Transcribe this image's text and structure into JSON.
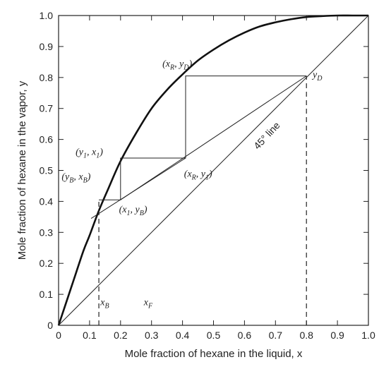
{
  "chart_data": {
    "type": "line",
    "xlabel": "Mole fraction of hexane in the liquid, x",
    "ylabel": "Mole fraction of hexane in the vapor, y",
    "xlim": [
      0,
      1
    ],
    "ylim": [
      0,
      1
    ],
    "x_ticks": [
      0,
      0.1,
      0.2,
      0.3,
      0.4,
      0.5,
      0.6,
      0.7,
      0.8,
      0.9,
      1.0
    ],
    "x_tick_labels": [
      "0",
      "0.1",
      "0.2",
      "0.3",
      "0.4",
      "0.5",
      "0.6",
      "0.7",
      "0.8",
      "0.9",
      "1.0"
    ],
    "y_ticks": [
      0,
      0.1,
      0.2,
      0.3,
      0.4,
      0.5,
      0.6,
      0.7,
      0.8,
      0.9,
      1.0
    ],
    "y_tick_labels": [
      "0",
      "0.1",
      "0.2",
      "0.3",
      "0.4",
      "0.5",
      "0.6",
      "0.7",
      "0.8",
      "0.9",
      "1.0"
    ],
    "grid": false,
    "series": [
      {
        "key": "equilibrium",
        "x": [
          0,
          0.02,
          0.05,
          0.08,
          0.1,
          0.13,
          0.16,
          0.2,
          0.25,
          0.3,
          0.35,
          0.4,
          0.45,
          0.5,
          0.55,
          0.6,
          0.65,
          0.7,
          0.75,
          0.8,
          0.85,
          0.9,
          0.95,
          1.0
        ],
        "y": [
          0,
          0.06,
          0.15,
          0.24,
          0.29,
          0.37,
          0.44,
          0.53,
          0.62,
          0.7,
          0.76,
          0.81,
          0.855,
          0.89,
          0.92,
          0.945,
          0.965,
          0.978,
          0.988,
          0.995,
          0.998,
          1.0,
          1.0,
          1.0
        ]
      },
      {
        "key": "diagonal",
        "x": [
          0,
          1
        ],
        "y": [
          0,
          1
        ]
      },
      {
        "key": "rectifying_line",
        "x": [
          0.2,
          0.8
        ],
        "y": [
          0.405,
          0.805
        ]
      },
      {
        "key": "stripping_line",
        "x": [
          0.105,
          0.41
        ],
        "y": [
          0.345,
          0.54
        ]
      },
      {
        "key": "stages",
        "x": [
          0.8,
          0.41,
          0.41,
          0.2,
          0.2,
          0.13,
          0.13
        ],
        "y": [
          0.805,
          0.805,
          0.54,
          0.54,
          0.405,
          0.405,
          0.405
        ]
      },
      {
        "key": "xd_drop",
        "x": [
          0.8,
          0.8
        ],
        "y": [
          0,
          0.805
        ]
      },
      {
        "key": "xb_drop",
        "x": [
          0.13,
          0.13
        ],
        "y": [
          0,
          0.405
        ]
      }
    ],
    "annotations": [
      {
        "text": "(x_R, y_D)",
        "x": 0.335,
        "y": 0.835,
        "main": "(x",
        "sub": "R",
        "rest": ", y",
        "sub2": "D",
        "tail": ")"
      },
      {
        "text": "y_D",
        "x": 0.82,
        "y": 0.8,
        "main": "y",
        "sub": "D",
        "rest": "",
        "sub2": "",
        "tail": ""
      },
      {
        "text": "(y_1, x_1)",
        "x": 0.055,
        "y": 0.55,
        "main": "(y",
        "sub": "1",
        "rest": ", x",
        "sub2": "1",
        "tail": ")"
      },
      {
        "text": "(y_B, x_B)",
        "x": 0.01,
        "y": 0.47,
        "main": "(y",
        "sub": "B",
        "rest": ", x",
        "sub2": "B",
        "tail": ")"
      },
      {
        "text": "(x_R, y_1)",
        "x": 0.405,
        "y": 0.48,
        "main": "(x",
        "sub": "R",
        "rest": ", y",
        "sub2": "1",
        "tail": ")"
      },
      {
        "text": "(x_1, y_B)",
        "x": 0.195,
        "y": 0.365,
        "main": "(x",
        "sub": "1",
        "rest": ", y",
        "sub2": "B",
        "tail": ")"
      },
      {
        "text": "x_B",
        "x": 0.135,
        "y": 0.065,
        "main": "x",
        "sub": "B",
        "rest": "",
        "sub2": "",
        "tail": ""
      },
      {
        "text": "x_F",
        "x": 0.275,
        "y": 0.065,
        "main": "x",
        "sub": "F",
        "rest": "",
        "sub2": "",
        "tail": ""
      }
    ],
    "line_label": {
      "text": "45° line",
      "x": 0.68,
      "y": 0.605,
      "angle": -47
    }
  }
}
